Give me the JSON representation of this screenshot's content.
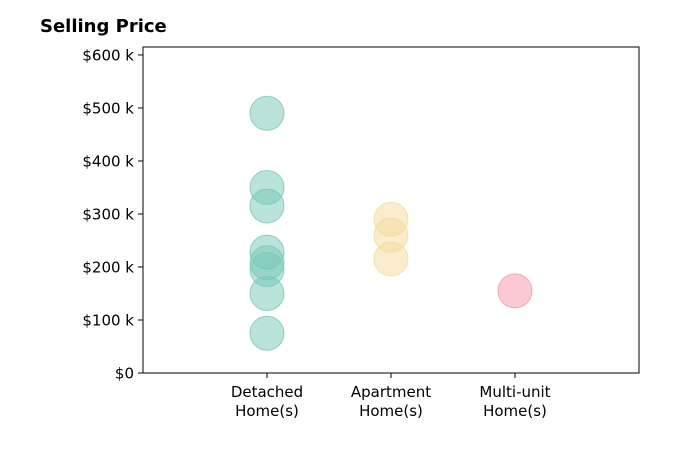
{
  "chart_data": {
    "type": "scatter",
    "title": "Selling Price",
    "xlabel": "",
    "ylabel": "",
    "categories": [
      "Detached\nHome(s)",
      "Apartment\nHome(s)",
      "Multi-unit\nHome(s)"
    ],
    "yticks": [
      0,
      100000,
      200000,
      300000,
      400000,
      500000,
      600000
    ],
    "ytick_labels": [
      "$0",
      "$100 k",
      "$200 k",
      "$300 k",
      "$400 k",
      "$500 k",
      "$600 k"
    ],
    "ylim": [
      0,
      615000
    ],
    "grid": false,
    "series": [
      {
        "category": "Detached\nHome(s)",
        "color": "#76c7b7",
        "values": [
          490000,
          350000,
          315000,
          228000,
          208000,
          195000,
          150000,
          75000
        ]
      },
      {
        "category": "Apartment\nHome(s)",
        "color": "#f4dc9c",
        "values": [
          290000,
          260000,
          215000
        ]
      },
      {
        "category": "Multi-unit\nHome(s)",
        "color": "#f19aa5",
        "values": [
          155000
        ]
      }
    ]
  }
}
